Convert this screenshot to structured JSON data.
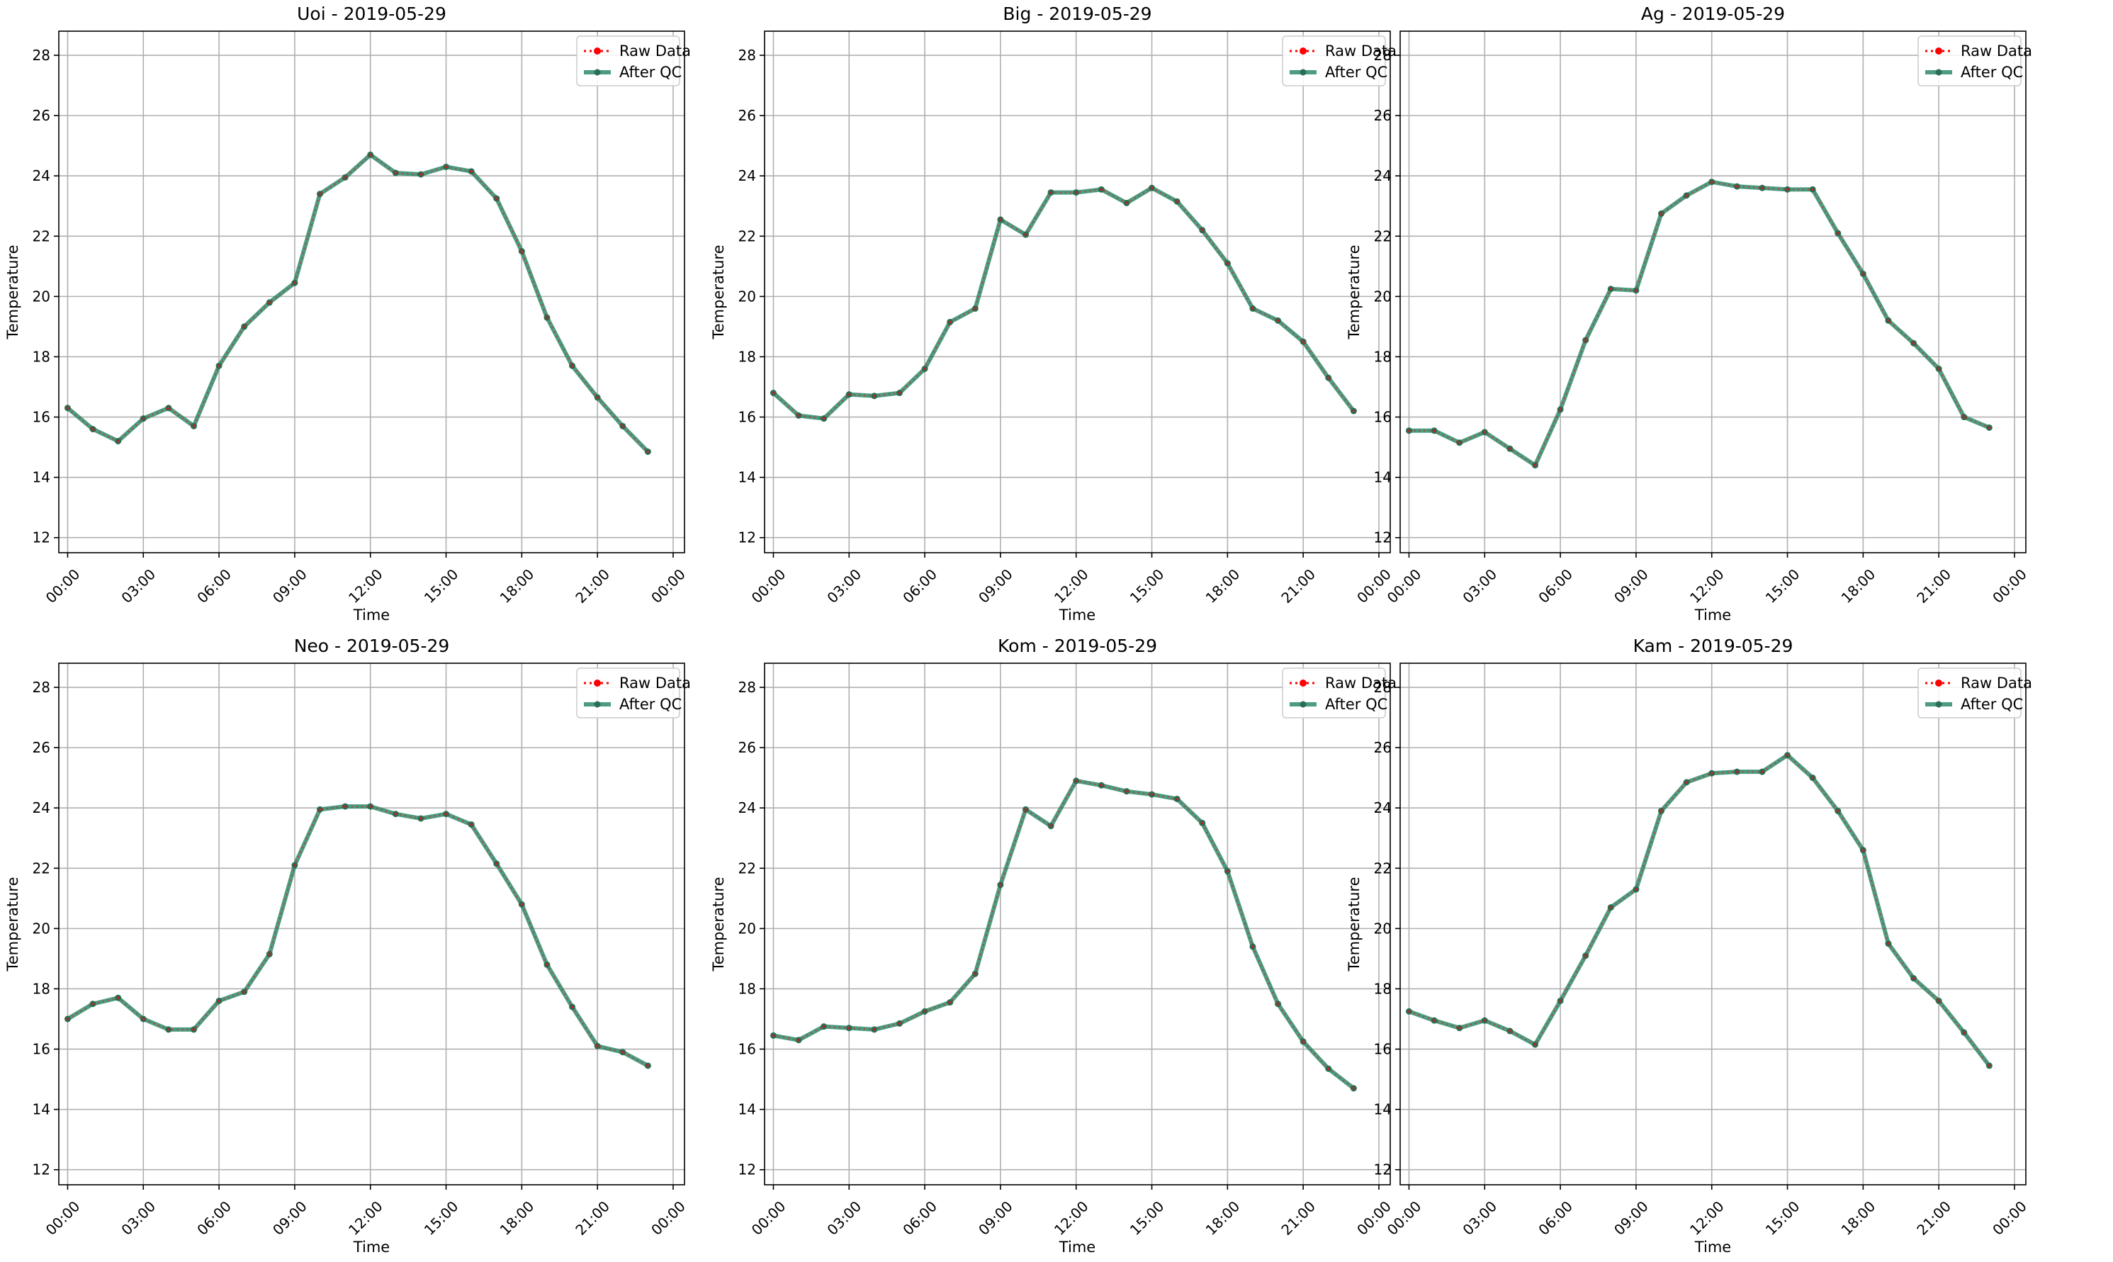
{
  "chart_data": [
    {
      "type": "line",
      "title": "Uoi - 2019-05-29",
      "xlabel": "Time",
      "ylabel": "Temperature",
      "xticks": [
        "00:00",
        "03:00",
        "06:00",
        "09:00",
        "12:00",
        "15:00",
        "18:00",
        "21:00",
        "00:00"
      ],
      "yticks": [
        "12",
        "14",
        "16",
        "18",
        "20",
        "22",
        "24",
        "26",
        "28"
      ],
      "ylim": [
        11.5,
        28.8
      ],
      "grid": true,
      "legend_position": "upper right",
      "x_hours": [
        0,
        1,
        2,
        3,
        4,
        5,
        6,
        7,
        8,
        9,
        10,
        11,
        12,
        13,
        14,
        15,
        16,
        17,
        18,
        19,
        20,
        21,
        22,
        23
      ],
      "series": [
        {
          "name": "Raw Data",
          "color": "#ff0000",
          "style": "dotted",
          "values": [
            16.3,
            15.6,
            15.2,
            15.95,
            16.3,
            15.7,
            17.7,
            19.0,
            19.8,
            20.45,
            23.4,
            23.95,
            24.7,
            24.1,
            24.05,
            24.3,
            24.15,
            23.25,
            21.5,
            19.3,
            17.7,
            16.65,
            15.7,
            14.85
          ]
        },
        {
          "name": "After QC",
          "color": "#2e8b6b",
          "style": "solid",
          "values": [
            16.3,
            15.6,
            15.2,
            15.95,
            16.3,
            15.7,
            17.7,
            19.0,
            19.8,
            20.45,
            23.4,
            23.95,
            24.7,
            24.1,
            24.05,
            24.3,
            24.15,
            23.25,
            21.5,
            19.3,
            17.7,
            16.65,
            15.7,
            14.85
          ]
        }
      ]
    },
    {
      "type": "line",
      "title": "Big - 2019-05-29",
      "xlabel": "Time",
      "ylabel": "Temperature",
      "xticks": [
        "00:00",
        "03:00",
        "06:00",
        "09:00",
        "12:00",
        "15:00",
        "18:00",
        "21:00",
        "00:00"
      ],
      "yticks": [
        "12",
        "14",
        "16",
        "18",
        "20",
        "22",
        "24",
        "26",
        "28"
      ],
      "ylim": [
        11.5,
        28.8
      ],
      "grid": true,
      "legend_position": "upper right",
      "x_hours": [
        0,
        1,
        2,
        3,
        4,
        5,
        6,
        7,
        8,
        9,
        10,
        11,
        12,
        13,
        14,
        15,
        16,
        17,
        18,
        19,
        20,
        21,
        22,
        23
      ],
      "series": [
        {
          "name": "Raw Data",
          "color": "#ff0000",
          "style": "dotted",
          "values": [
            16.8,
            16.05,
            15.95,
            16.75,
            16.7,
            16.8,
            17.6,
            19.15,
            19.6,
            22.55,
            22.05,
            23.45,
            23.45,
            23.55,
            23.1,
            23.6,
            23.15,
            22.2,
            21.1,
            19.6,
            19.2,
            18.5,
            17.3,
            16.2
          ]
        },
        {
          "name": "After QC",
          "color": "#2e8b6b",
          "style": "solid",
          "values": [
            16.8,
            16.05,
            15.95,
            16.75,
            16.7,
            16.8,
            17.6,
            19.15,
            19.6,
            22.55,
            22.05,
            23.45,
            23.45,
            23.55,
            23.1,
            23.6,
            23.15,
            22.2,
            21.1,
            19.6,
            19.2,
            18.5,
            17.3,
            16.2
          ]
        }
      ]
    },
    {
      "type": "line",
      "title": "Ag - 2019-05-29",
      "xlabel": "Time",
      "ylabel": "Temperature",
      "xticks": [
        "00:00",
        "03:00",
        "06:00",
        "09:00",
        "12:00",
        "15:00",
        "18:00",
        "21:00",
        "00:00"
      ],
      "yticks": [
        "12",
        "14",
        "16",
        "18",
        "20",
        "22",
        "24",
        "26",
        "28"
      ],
      "ylim": [
        11.5,
        28.8
      ],
      "grid": true,
      "legend_position": "upper right",
      "x_hours": [
        0,
        1,
        2,
        3,
        4,
        5,
        6,
        7,
        8,
        9,
        10,
        11,
        12,
        13,
        14,
        15,
        16,
        17,
        18,
        19,
        20,
        21,
        22,
        23
      ],
      "series": [
        {
          "name": "Raw Data",
          "color": "#ff0000",
          "style": "dotted",
          "values": [
            15.55,
            15.55,
            15.15,
            15.5,
            14.95,
            14.4,
            16.25,
            18.55,
            20.25,
            20.2,
            22.75,
            23.35,
            23.8,
            23.65,
            23.6,
            23.55,
            23.55,
            22.1,
            20.75,
            19.2,
            18.45,
            17.6,
            16.0,
            15.65
          ]
        },
        {
          "name": "After QC",
          "color": "#2e8b6b",
          "style": "solid",
          "values": [
            15.55,
            15.55,
            15.15,
            15.5,
            14.95,
            14.4,
            16.25,
            18.55,
            20.25,
            20.2,
            22.75,
            23.35,
            23.8,
            23.65,
            23.6,
            23.55,
            23.55,
            22.1,
            20.75,
            19.2,
            18.45,
            17.6,
            16.0,
            15.65
          ]
        }
      ]
    },
    {
      "type": "line",
      "title": "Neo - 2019-05-29",
      "xlabel": "Time",
      "ylabel": "Temperature",
      "xticks": [
        "00:00",
        "03:00",
        "06:00",
        "09:00",
        "12:00",
        "15:00",
        "18:00",
        "21:00",
        "00:00"
      ],
      "yticks": [
        "12",
        "14",
        "16",
        "18",
        "20",
        "22",
        "24",
        "26",
        "28"
      ],
      "ylim": [
        11.5,
        28.8
      ],
      "grid": true,
      "legend_position": "upper right",
      "x_hours": [
        0,
        1,
        2,
        3,
        4,
        5,
        6,
        7,
        8,
        9,
        10,
        11,
        12,
        13,
        14,
        15,
        16,
        17,
        18,
        19,
        20,
        21,
        22,
        23
      ],
      "series": [
        {
          "name": "Raw Data",
          "color": "#ff0000",
          "style": "dotted",
          "values": [
            17.0,
            17.5,
            17.7,
            17.0,
            16.65,
            16.65,
            17.6,
            17.9,
            19.15,
            22.1,
            23.95,
            24.05,
            24.05,
            23.8,
            23.65,
            23.8,
            23.45,
            22.15,
            20.8,
            18.8,
            17.4,
            16.1,
            15.9,
            15.45
          ]
        },
        {
          "name": "After QC",
          "color": "#2e8b6b",
          "style": "solid",
          "values": [
            17.0,
            17.5,
            17.7,
            17.0,
            16.65,
            16.65,
            17.6,
            17.9,
            19.15,
            22.1,
            23.95,
            24.05,
            24.05,
            23.8,
            23.65,
            23.8,
            23.45,
            22.15,
            20.8,
            18.8,
            17.4,
            16.1,
            15.9,
            15.45
          ]
        }
      ]
    },
    {
      "type": "line",
      "title": "Kom - 2019-05-29",
      "xlabel": "Time",
      "ylabel": "Temperature",
      "xticks": [
        "00:00",
        "03:00",
        "06:00",
        "09:00",
        "12:00",
        "15:00",
        "18:00",
        "21:00",
        "00:00"
      ],
      "yticks": [
        "12",
        "14",
        "16",
        "18",
        "20",
        "22",
        "24",
        "26",
        "28"
      ],
      "ylim": [
        11.5,
        28.8
      ],
      "grid": true,
      "legend_position": "upper right",
      "x_hours": [
        0,
        1,
        2,
        3,
        4,
        5,
        6,
        7,
        8,
        9,
        10,
        11,
        12,
        13,
        14,
        15,
        16,
        17,
        18,
        19,
        20,
        21,
        22,
        23
      ],
      "series": [
        {
          "name": "Raw Data",
          "color": "#ff0000",
          "style": "dotted",
          "values": [
            16.45,
            16.3,
            16.75,
            16.7,
            16.65,
            16.85,
            17.25,
            17.55,
            18.5,
            21.45,
            23.95,
            23.4,
            24.9,
            24.75,
            24.55,
            24.45,
            24.3,
            23.5,
            21.9,
            19.4,
            17.5,
            16.25,
            15.35,
            14.7
          ]
        },
        {
          "name": "After QC",
          "color": "#2e8b6b",
          "style": "solid",
          "values": [
            16.45,
            16.3,
            16.75,
            16.7,
            16.65,
            16.85,
            17.25,
            17.55,
            18.5,
            21.45,
            23.95,
            23.4,
            24.9,
            24.75,
            24.55,
            24.45,
            24.3,
            23.5,
            21.9,
            19.4,
            17.5,
            16.25,
            15.35,
            14.7
          ]
        }
      ]
    },
    {
      "type": "line",
      "title": "Kam - 2019-05-29",
      "xlabel": "Time",
      "ylabel": "Temperature",
      "xticks": [
        "00:00",
        "03:00",
        "06:00",
        "09:00",
        "12:00",
        "15:00",
        "18:00",
        "21:00",
        "00:00"
      ],
      "yticks": [
        "12",
        "14",
        "16",
        "18",
        "20",
        "22",
        "24",
        "26",
        "28"
      ],
      "ylim": [
        11.5,
        28.8
      ],
      "grid": true,
      "legend_position": "upper right",
      "x_hours": [
        0,
        1,
        2,
        3,
        4,
        5,
        6,
        7,
        8,
        9,
        10,
        11,
        12,
        13,
        14,
        15,
        16,
        17,
        18,
        19,
        20,
        21,
        22,
        23
      ],
      "series": [
        {
          "name": "Raw Data",
          "color": "#ff0000",
          "style": "dotted",
          "values": [
            17.25,
            16.95,
            16.7,
            16.95,
            16.6,
            16.15,
            17.6,
            19.1,
            20.7,
            21.3,
            23.9,
            24.85,
            25.15,
            25.2,
            25.2,
            25.75,
            25.0,
            23.9,
            22.6,
            19.5,
            18.35,
            17.6,
            16.55,
            15.45
          ]
        },
        {
          "name": "After QC",
          "color": "#2e8b6b",
          "style": "solid",
          "values": [
            17.25,
            16.95,
            16.7,
            16.95,
            16.6,
            16.15,
            17.6,
            19.1,
            20.7,
            21.3,
            23.9,
            24.85,
            25.15,
            25.2,
            25.2,
            25.75,
            25.0,
            23.9,
            22.6,
            19.5,
            18.35,
            17.6,
            16.55,
            15.45
          ]
        }
      ]
    }
  ]
}
